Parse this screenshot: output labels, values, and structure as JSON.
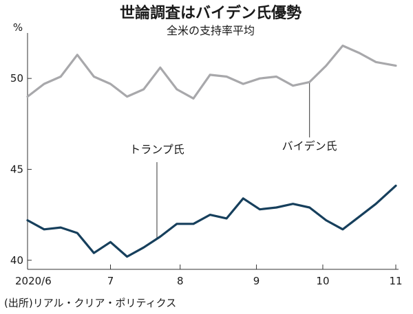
{
  "chart_data": {
    "type": "line",
    "title": "世論調査はバイデン氏優勢",
    "subtitle": "全米の支持率平均",
    "yunit": "%",
    "ylim": [
      39.5,
      52.5
    ],
    "yticks": [
      40,
      45,
      50
    ],
    "xlim": [
      0,
      22.2
    ],
    "xticks": [
      {
        "x": 0,
        "label": "2020/6"
      },
      {
        "x": 5,
        "label": "7"
      },
      {
        "x": 9.2,
        "label": "8"
      },
      {
        "x": 13.8,
        "label": "9"
      },
      {
        "x": 17.8,
        "label": "10"
      },
      {
        "x": 22.2,
        "label": "11"
      }
    ],
    "series": [
      {
        "name": "バイデン氏",
        "color": "#a8a8ab",
        "x": [
          0,
          1,
          2,
          3,
          4,
          5,
          6,
          7,
          8,
          9,
          10,
          11,
          12,
          13,
          14,
          15,
          16,
          17,
          18,
          19,
          20,
          21,
          22.2
        ],
        "y": [
          49.0,
          49.7,
          50.1,
          51.3,
          50.1,
          49.7,
          49.0,
          49.4,
          50.6,
          49.4,
          48.9,
          50.2,
          50.1,
          49.7,
          50.0,
          50.1,
          49.6,
          49.8,
          50.7,
          51.8,
          51.4,
          50.9,
          50.7
        ]
      },
      {
        "name": "トランプ氏",
        "color": "#163f5c",
        "x": [
          0,
          1,
          2,
          3,
          4,
          5,
          6,
          7,
          8,
          9,
          10,
          11,
          12,
          13,
          14,
          15,
          16,
          17,
          18,
          19,
          20,
          21,
          22.2
        ],
        "y": [
          42.2,
          41.7,
          41.8,
          41.5,
          40.4,
          41.0,
          40.2,
          40.7,
          41.3,
          42.0,
          42.0,
          42.5,
          42.3,
          43.4,
          42.8,
          42.9,
          43.1,
          42.9,
          42.2,
          41.7,
          42.4,
          43.1,
          44.1
        ]
      }
    ],
    "annotations": [
      {
        "text": "トランプ氏",
        "series": 1,
        "x": 7.8
      },
      {
        "text": "バイデン氏",
        "series": 0,
        "x": 17
      }
    ]
  },
  "source": "(出所)リアル・クリア・ポリティクス"
}
